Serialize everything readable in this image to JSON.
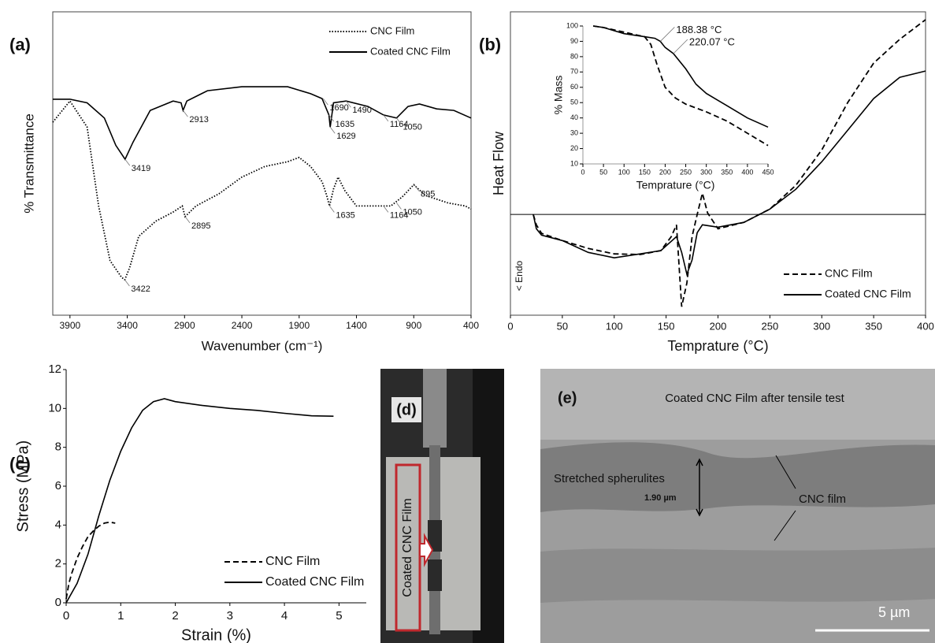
{
  "chart_data": [
    {
      "type": "line",
      "label": "(a)",
      "xlabel": "Wavenumber (cm⁻¹)",
      "ylabel": "% Transmittance",
      "xlim": [
        4050,
        400
      ],
      "ylim": [
        0,
        100
      ],
      "xticks": [
        3900,
        3400,
        2900,
        2400,
        1900,
        1400,
        900,
        400
      ],
      "legend": "upper right",
      "series": [
        {
          "name": "CNC Film",
          "color": "#000000",
          "style": "dotted",
          "x": [
            4050,
            3900,
            3750,
            3650,
            3550,
            3450,
            3422,
            3380,
            3300,
            3150,
            3000,
            2920,
            2895,
            2800,
            2600,
            2400,
            2200,
            2000,
            1900,
            1800,
            1700,
            1660,
            1635,
            1600,
            1560,
            1500,
            1400,
            1200,
            1100,
            1000,
            900,
            800,
            600,
            450,
            400
          ],
          "values": [
            63.6,
            70.6,
            62,
            36,
            18,
            12.5,
            11.7,
            15.6,
            26,
            31,
            34,
            36,
            32.5,
            36,
            40,
            45.5,
            49,
            50.6,
            52,
            49,
            44,
            39.5,
            36,
            41.6,
            45.5,
            41,
            36,
            36,
            36,
            39,
            43,
            39.5,
            37,
            36,
            35
          ]
        },
        {
          "name": "Coated CNC Film",
          "color": "#000000",
          "style": "solid",
          "x": [
            4050,
            3900,
            3750,
            3600,
            3500,
            3419,
            3350,
            3200,
            3000,
            2930,
            2913,
            2880,
            2700,
            2400,
            2000,
            1800,
            1700,
            1640,
            1629,
            1600,
            1490,
            1300,
            1164,
            1050,
            950,
            850,
            700,
            550,
            400
          ],
          "values": [
            71.2,
            71.2,
            70,
            65,
            56,
            51.4,
            57,
            67.5,
            70.6,
            70,
            67.5,
            70.6,
            74,
            75.3,
            75.3,
            73,
            71.4,
            66,
            62,
            70,
            70.6,
            68.8,
            66,
            65,
            68.8,
            69.6,
            68,
            67.5,
            65
          ]
        }
      ],
      "annotations": [
        {
          "text": "3419",
          "x": 3419,
          "y": 51.4
        },
        {
          "text": "2913",
          "x": 2913,
          "y": 67.5
        },
        {
          "text": "1690",
          "x": 1690,
          "y": 71.4
        },
        {
          "text": "1635",
          "x": 1640,
          "y": 66
        },
        {
          "text": "1629",
          "x": 1629,
          "y": 62
        },
        {
          "text": "1490",
          "x": 1490,
          "y": 70.6
        },
        {
          "text": "1164",
          "x": 1164,
          "y": 66
        },
        {
          "text": "1050",
          "x": 1050,
          "y": 65
        },
        {
          "text": "3422",
          "x": 3422,
          "y": 11.7
        },
        {
          "text": "2895",
          "x": 2895,
          "y": 32.5
        },
        {
          "text": "1635",
          "x": 1635,
          "y": 36
        },
        {
          "text": "1164",
          "x": 1164,
          "y": 36
        },
        {
          "text": "1050",
          "x": 1050,
          "y": 37
        },
        {
          "text": "895",
          "x": 895,
          "y": 43
        }
      ]
    },
    {
      "type": "line",
      "label": "(b)",
      "xlabel": "Temprature (°C)",
      "ylabel": "Heat Flow",
      "note": "< Endo",
      "xlim": [
        0,
        400
      ],
      "ylim": [
        -33.2,
        66.8
      ],
      "xticks": [
        0,
        50,
        100,
        150,
        200,
        250,
        300,
        350,
        400
      ],
      "legend": "lower right",
      "series": [
        {
          "name": "CNC Film",
          "color": "#000000",
          "style": "dashed",
          "x": [
            22,
            25,
            30,
            50,
            75,
            100,
            125,
            145,
            155,
            160,
            165,
            170,
            175,
            180,
            185,
            190,
            200,
            225,
            250,
            275,
            300,
            325,
            350,
            375,
            400
          ],
          "values": [
            0,
            -3.4,
            -6.2,
            -8.6,
            -11.2,
            -13,
            -13.2,
            -11.9,
            -7.3,
            -3.4,
            -30.4,
            -22.6,
            -7.3,
            0,
            7,
            0.5,
            -4.7,
            -2.6,
            1.8,
            9.6,
            21.3,
            36.9,
            49.9,
            57.7,
            64.2
          ]
        },
        {
          "name": "Coated CNC Film",
          "color": "#000000",
          "style": "solid",
          "x": [
            22,
            25,
            30,
            50,
            75,
            100,
            125,
            145,
            160,
            165,
            170,
            175,
            180,
            185,
            200,
            225,
            250,
            275,
            300,
            325,
            350,
            375,
            400
          ],
          "values": [
            0,
            -4.7,
            -6.8,
            -8.6,
            -12.5,
            -14.3,
            -13,
            -11.9,
            -7.3,
            -12.5,
            -19.7,
            -15,
            -6,
            -3.4,
            -4.2,
            -2.6,
            1.8,
            8.3,
            17.4,
            27.8,
            38.2,
            45.2,
            47.3
          ]
        }
      ]
    },
    {
      "type": "line",
      "xlabel": "Temprature (°C)",
      "ylabel": "% Mass",
      "xlim": [
        0,
        450
      ],
      "ylim": [
        10,
        100
      ],
      "xticks": [
        0,
        50,
        100,
        150,
        200,
        250,
        300,
        350,
        400,
        450
      ],
      "yticks": [
        10,
        20,
        30,
        40,
        50,
        60,
        70,
        80,
        90,
        100
      ],
      "series": [
        {
          "color": "#000000",
          "style": "dashed",
          "x": [
            25,
            50,
            100,
            150,
            165,
            180,
            200,
            225,
            250,
            300,
            350,
            400,
            450
          ],
          "values": [
            100,
            99,
            96,
            93,
            88,
            75,
            60,
            53,
            49,
            44,
            38,
            30,
            22
          ]
        },
        {
          "color": "#000000",
          "style": "solid",
          "x": [
            25,
            50,
            100,
            150,
            175,
            188,
            200,
            220,
            250,
            275,
            300,
            350,
            400,
            450
          ],
          "values": [
            100,
            99,
            95,
            93,
            92,
            90,
            86,
            82,
            72,
            62,
            56,
            48,
            40,
            34
          ]
        }
      ],
      "annotations": [
        {
          "text": "188.38 °C",
          "x": 188.38,
          "y": 90
        },
        {
          "text": "220.07 °C",
          "x": 220.07,
          "y": 82
        }
      ]
    },
    {
      "type": "line",
      "label": "(c)",
      "xlabel": "Strain (%)",
      "ylabel": "Stress (MPa)",
      "xlim": [
        0,
        5.5
      ],
      "ylim": [
        0,
        12
      ],
      "xticks": [
        0,
        1,
        2,
        3,
        4,
        5
      ],
      "yticks": [
        0,
        2,
        4,
        6,
        8,
        10,
        12
      ],
      "legend": "lower right",
      "series": [
        {
          "name": "CNC Film",
          "color": "#000000",
          "style": "dashed",
          "x": [
            0,
            0.05,
            0.1,
            0.2,
            0.3,
            0.4,
            0.5,
            0.6,
            0.7,
            0.8,
            0.9
          ],
          "values": [
            0.2,
            1,
            1.5,
            2.3,
            2.9,
            3.4,
            3.7,
            3.95,
            4.1,
            4.15,
            4.1
          ]
        },
        {
          "name": "Coated CNC Film",
          "color": "#000000",
          "style": "solid",
          "x": [
            0,
            0.2,
            0.4,
            0.6,
            0.8,
            1,
            1.2,
            1.4,
            1.6,
            1.8,
            2,
            2.5,
            3,
            3.5,
            4,
            4.5,
            4.9
          ],
          "values": [
            0,
            1,
            2.5,
            4.5,
            6.3,
            7.8,
            9,
            9.9,
            10.35,
            10.5,
            10.35,
            10.15,
            10,
            9.9,
            9.75,
            9.62,
            9.6
          ]
        }
      ]
    }
  ],
  "panels": [
    {
      "label": "(d)",
      "sample": "Coated CNC Film"
    },
    {
      "label": "(e)",
      "title": "Coated CNC Film after tensile test",
      "feature": "Stretched spherulites",
      "thickness": "1.90 µm",
      "layer": "CNC film",
      "scale_bar": "5 µm"
    }
  ]
}
